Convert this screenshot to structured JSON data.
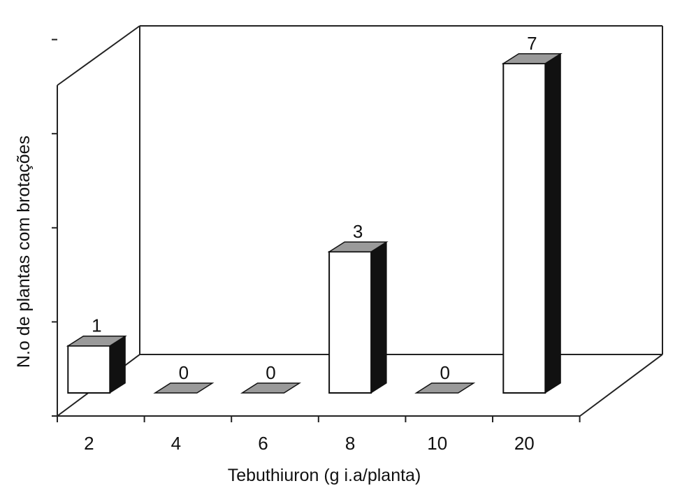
{
  "chart_data": {
    "type": "bar",
    "style": "3d",
    "title": "",
    "xlabel": "Tebuthiuron (g i.a/planta)",
    "ylabel": "N.o de plantas com brotações",
    "categories": [
      "2",
      "4",
      "6",
      "8",
      "10",
      "20"
    ],
    "values": [
      1,
      0,
      0,
      3,
      0,
      7
    ],
    "data_labels": [
      "1",
      "0",
      "0",
      "3",
      "0",
      "7"
    ],
    "ylim": [
      0,
      8
    ],
    "grid": false,
    "legend": "none",
    "colors": {
      "bar_front": "#ffffff",
      "bar_side": "#111111",
      "bar_top": "#9a9a9a",
      "frame": "#222222"
    }
  }
}
